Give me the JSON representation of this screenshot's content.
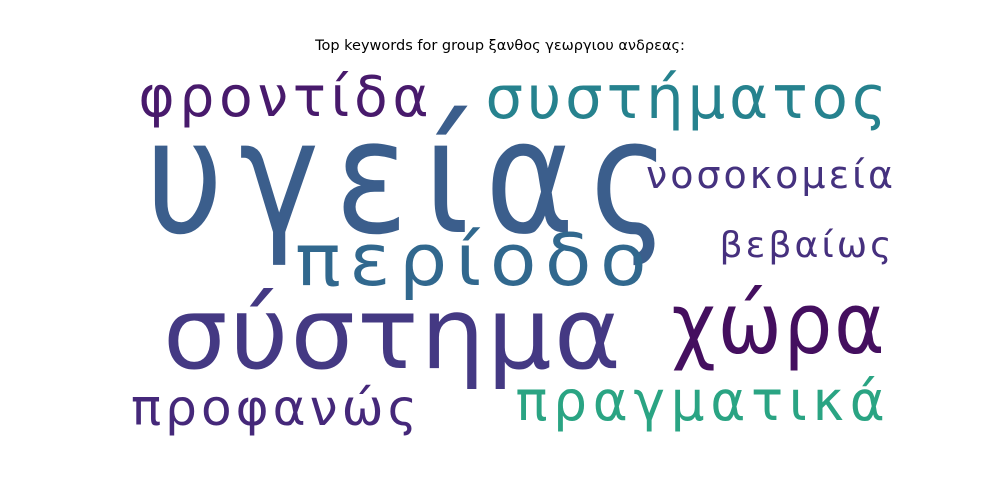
{
  "chart_data": {
    "type": "wordcloud",
    "title": "Top keywords for group ξανθος γεωργιου ανδρεας:",
    "words": [
      {
        "text": "υγείας",
        "weight": 1.0,
        "color": "#3b5e8c"
      },
      {
        "text": "σύστημα",
        "weight": 0.66,
        "color": "#443983"
      },
      {
        "text": "χώρα",
        "weight": 0.6,
        "color": "#440f5f"
      },
      {
        "text": "περίοδο",
        "weight": 0.54,
        "color": "#31688e"
      },
      {
        "text": "συστήματος",
        "weight": 0.44,
        "color": "#26828e"
      },
      {
        "text": "πραγματικά",
        "weight": 0.42,
        "color": "#2aa483"
      },
      {
        "text": "φροντίδα",
        "weight": 0.4,
        "color": "#481a6c"
      },
      {
        "text": "προφανώς",
        "weight": 0.38,
        "color": "#45287a"
      },
      {
        "text": "νοσοκομεία",
        "weight": 0.3,
        "color": "#45327f"
      },
      {
        "text": "βεβαίως",
        "weight": 0.3,
        "color": "#46307e"
      }
    ]
  }
}
